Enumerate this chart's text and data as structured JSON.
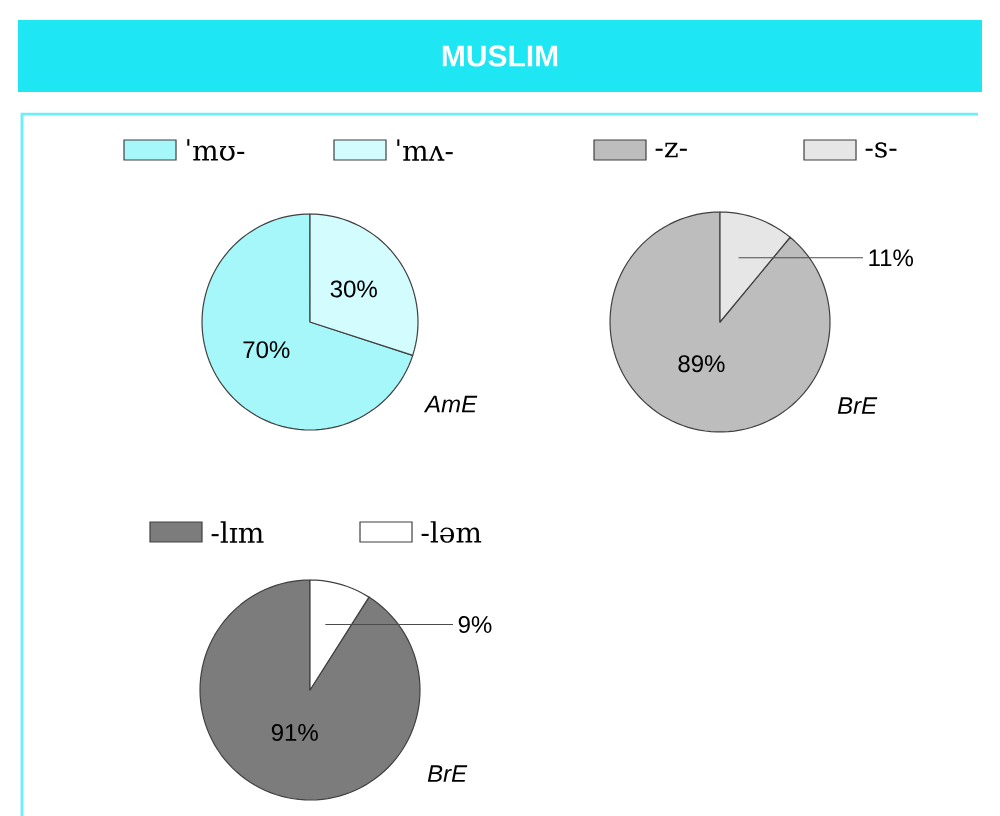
{
  "chart_data": [
    {
      "type": "pie",
      "title": "MUSLIM",
      "categories": [
        "ˈmʊ-",
        "ˈmʌ-"
      ],
      "values": [
        70,
        30
      ],
      "colors": [
        "#a6f7fa",
        "#d2fcfd"
      ],
      "value_labels": [
        "70%",
        "30%"
      ],
      "legend": "top",
      "annotations": [
        "AmE"
      ]
    },
    {
      "type": "pie",
      "categories": [
        "-z-",
        "-s-"
      ],
      "values": [
        89,
        11
      ],
      "colors": [
        "#bdbdbd",
        "#e6e6e6"
      ],
      "value_labels": [
        "89%",
        "11%"
      ],
      "legend": "top",
      "annotations": [
        "BrE"
      ]
    },
    {
      "type": "pie",
      "categories": [
        "-lɪm",
        "-ləm"
      ],
      "values": [
        91,
        9
      ],
      "colors": [
        "#7c7c7c",
        "#ffffff"
      ],
      "value_labels": [
        "91%",
        "9%"
      ],
      "legend": "top",
      "annotations": [
        "BrE"
      ]
    }
  ]
}
